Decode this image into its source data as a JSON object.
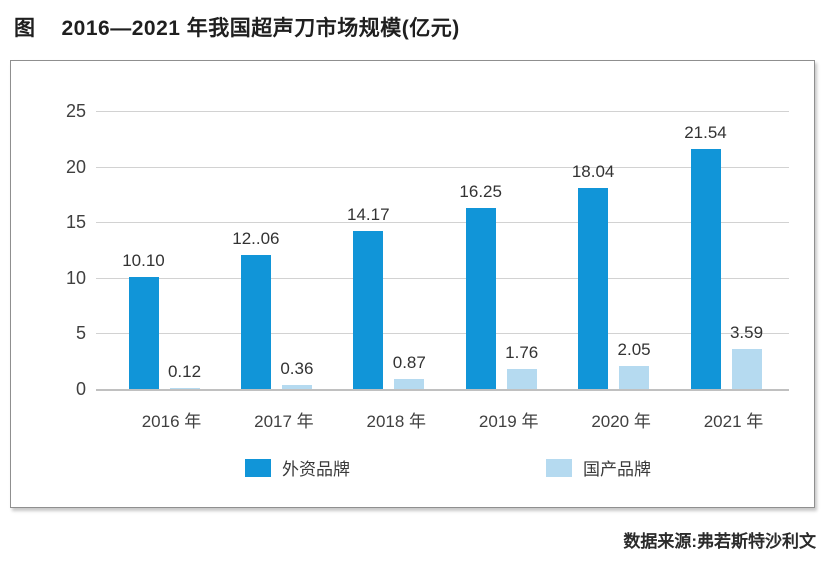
{
  "figure": {
    "title_prefix": "图",
    "title": "2016—2021 年我国超声刀市场规模(亿元)",
    "source": "数据来源:弗若斯特沙利文"
  },
  "chart_data": {
    "type": "bar",
    "title": "2016—2021 年我国超声刀市场规模(亿元)",
    "categories": [
      "2016 年",
      "2017 年",
      "2018 年",
      "2019 年",
      "2020 年",
      "2021 年"
    ],
    "series": [
      {
        "name": "外资品牌",
        "color": "#1195d8",
        "values": [
          10.1,
          12.06,
          14.17,
          16.25,
          18.04,
          21.54
        ],
        "labels": [
          "10.10",
          "12..06",
          "14.17",
          "16.25",
          "18.04",
          "21.54"
        ]
      },
      {
        "name": "国产品牌",
        "color": "#b5daf0",
        "values": [
          0.12,
          0.36,
          0.87,
          1.76,
          2.05,
          3.59
        ],
        "labels": [
          "0.12",
          "0.36",
          "0.87",
          "1.76",
          "2.05",
          "3.59"
        ]
      }
    ],
    "ylim": [
      0,
      25
    ],
    "yticks": [
      0,
      5,
      10,
      15,
      20,
      25
    ],
    "grid": true,
    "legend_position": "bottom-inside",
    "xlabel": "",
    "ylabel": ""
  }
}
